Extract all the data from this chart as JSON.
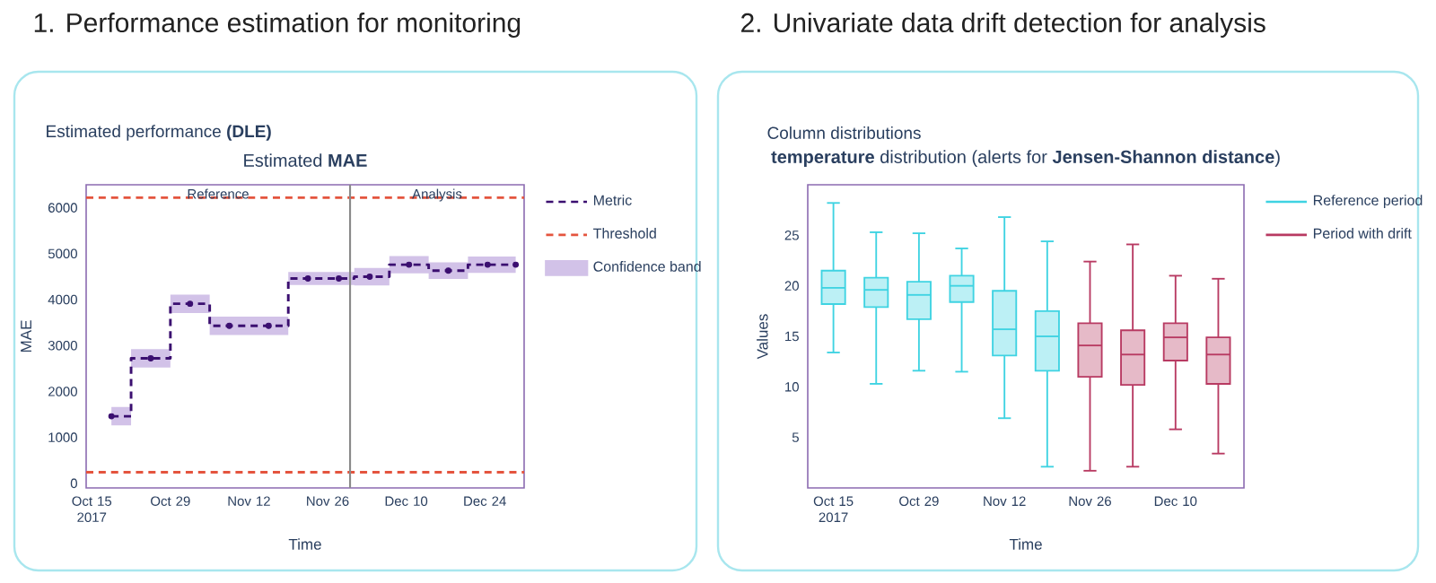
{
  "chart_data": [
    {
      "type": "step",
      "title": "Estimated **MAE**",
      "subtitle": "Estimated performance **(DLE)**",
      "xlabel": "Time",
      "ylabel": "MAE",
      "annotations": [
        "1. Performance estimation for monitoring",
        "Reference",
        "Analysis"
      ],
      "xlim": [
        "2017-10-14",
        "2017-12-31"
      ],
      "xticks": [
        {
          "value": "2017-10-15",
          "label": "Oct 15 2017"
        },
        {
          "value": "2017-10-29",
          "label": "Oct 29"
        },
        {
          "value": "2017-11-12",
          "label": "Nov 12"
        },
        {
          "value": "2017-11-26",
          "label": "Nov 26"
        },
        {
          "value": "2017-12-10",
          "label": "Dec 10"
        },
        {
          "value": "2017-12-24",
          "label": "Dec 24"
        }
      ],
      "ylim": [
        -100,
        6500
      ],
      "yticks": [
        0,
        1000,
        2000,
        3000,
        4000,
        5000,
        6000
      ],
      "legend": "right",
      "ref_lines": [
        {
          "axis": "x",
          "value": "2017-11-30",
          "color": "#8a8a8a"
        }
      ],
      "series": [
        {
          "name": "Metric",
          "type": "step",
          "color": "#3b0f70",
          "line_style": "dashed",
          "marker": "circle",
          "x": [
            "2017-10-18T12:00",
            "2017-10-25T12:00",
            "2017-11-01T12:00",
            "2017-11-08T12:00",
            "2017-11-15T12:00",
            "2017-11-22T12:00",
            "2017-11-28T00:00",
            "2017-12-03T12:00",
            "2017-12-10T12:00",
            "2017-12-17T12:00",
            "2017-12-24T12:00",
            "2017-12-29T12:00"
          ],
          "values": [
            1460,
            2720,
            3910,
            3430,
            3430,
            4460,
            4460,
            4500,
            4760,
            4630,
            4760,
            4760
          ],
          "lower": [
            1260,
            2520,
            3710,
            3230,
            3230,
            4320,
            4320,
            4310,
            4570,
            4450,
            4580,
            4580
          ],
          "upper": [
            1660,
            2920,
            4110,
            3630,
            3630,
            4600,
            4600,
            4690,
            4950,
            4810,
            4940,
            4940
          ]
        },
        {
          "name": "Threshold",
          "type": "line",
          "color": "#e4543e",
          "line_style": "dashed",
          "x": [
            "2017-10-14",
            "2017-12-31"
          ],
          "values": [
            6220,
            6220
          ]
        },
        {
          "name": "Confidence band",
          "type": "area",
          "color": "#d2c2e8"
        },
        {
          "type": "line",
          "color": "#e4543e",
          "line_style": "dashed",
          "x": [
            "2017-10-14",
            "2017-12-31"
          ],
          "values": [
            240,
            240
          ]
        }
      ]
    },
    {
      "type": "box",
      "title": "**temperature** distribution (alerts for **Jensen-Shannon distance**)",
      "subtitle": "Column distributions",
      "xlabel": "Time",
      "ylabel": "Values",
      "annotations": [
        "2. Univariate data drift detection for analysis"
      ],
      "categories": [
        "Oct 15 2017",
        null,
        "Oct 29",
        null,
        "Nov 12",
        null,
        "Nov 26",
        null,
        "Dec 10",
        null
      ],
      "ylim": [
        0,
        30
      ],
      "yticks": [
        5,
        10,
        15,
        20,
        25
      ],
      "legend": "right",
      "series": [
        {
          "name": "Reference period",
          "color": "#3fd3e2",
          "boxes": [
            {
              "low": 13.4,
              "q1": 18.2,
              "median": 19.8,
              "q3": 21.5,
              "high": 28.2
            },
            {
              "low": 10.3,
              "q1": 17.9,
              "median": 19.6,
              "q3": 20.8,
              "high": 25.3
            },
            {
              "low": 11.6,
              "q1": 16.7,
              "median": 19.1,
              "q3": 20.4,
              "high": 25.2
            },
            {
              "low": 11.5,
              "q1": 18.4,
              "median": 20.0,
              "q3": 21.0,
              "high": 23.7
            },
            {
              "low": 6.9,
              "q1": 13.1,
              "median": 15.7,
              "q3": 19.5,
              "high": 26.8
            },
            {
              "low": 2.1,
              "q1": 11.6,
              "median": 15.0,
              "q3": 17.5,
              "high": 24.4
            },
            null,
            null,
            null,
            null
          ]
        },
        {
          "name": "Period with drift",
          "color": "#b83a62",
          "boxes": [
            null,
            null,
            null,
            null,
            null,
            null,
            {
              "low": 1.7,
              "q1": 11.0,
              "median": 14.1,
              "q3": 16.3,
              "high": 22.4
            },
            {
              "low": 2.1,
              "q1": 10.2,
              "median": 13.2,
              "q3": 15.6,
              "high": 24.1
            },
            {
              "low": 5.8,
              "q1": 12.6,
              "median": 14.9,
              "q3": 16.3,
              "high": 21.0
            },
            {
              "low": 3.4,
              "q1": 10.3,
              "median": 13.2,
              "q3": 14.9,
              "high": 20.7
            }
          ]
        }
      ]
    }
  ]
}
